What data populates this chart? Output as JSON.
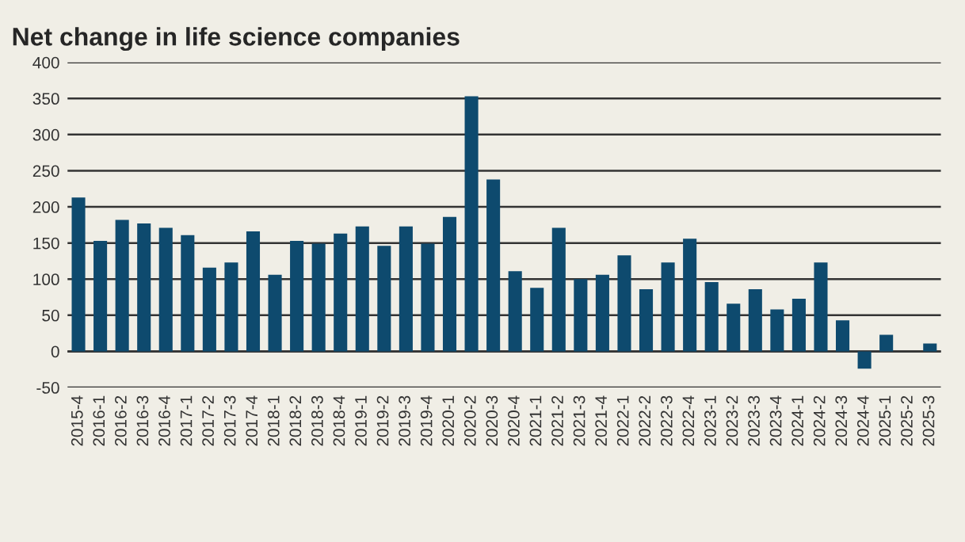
{
  "chart_data": {
    "type": "bar",
    "title": "Net change in life science companies",
    "categories": [
      "2015-4",
      "2016-1",
      "2016-2",
      "2016-3",
      "2016-4",
      "2017-1",
      "2017-2",
      "2017-3",
      "2017-4",
      "2018-1",
      "2018-2",
      "2018-3",
      "2018-4",
      "2019-1",
      "2019-2",
      "2019-3",
      "2019-4",
      "2020-1",
      "2020-2",
      "2020-3",
      "2020-4",
      "2021-1",
      "2021-2",
      "2021-3",
      "2021-4",
      "2022-1",
      "2022-2",
      "2022-3",
      "2022-4",
      "2023-1",
      "2023-2",
      "2023-3",
      "2023-4",
      "2024-1",
      "2024-2",
      "2024-3",
      "2024-4",
      "2025-1",
      "2025-2",
      "2025-3"
    ],
    "values": [
      213,
      153,
      182,
      177,
      171,
      161,
      116,
      123,
      166,
      106,
      153,
      149,
      163,
      173,
      146,
      173,
      149,
      186,
      353,
      238,
      111,
      88,
      171,
      100,
      106,
      133,
      86,
      123,
      156,
      96,
      66,
      86,
      58,
      73,
      123,
      43,
      -24,
      23,
      null,
      11
    ],
    "color": "#0e4a6e",
    "ylim": [
      -50,
      400
    ],
    "yticks": [
      -50,
      0,
      50,
      100,
      150,
      200,
      250,
      300,
      350,
      400
    ],
    "grid": "y",
    "legend": false
  }
}
